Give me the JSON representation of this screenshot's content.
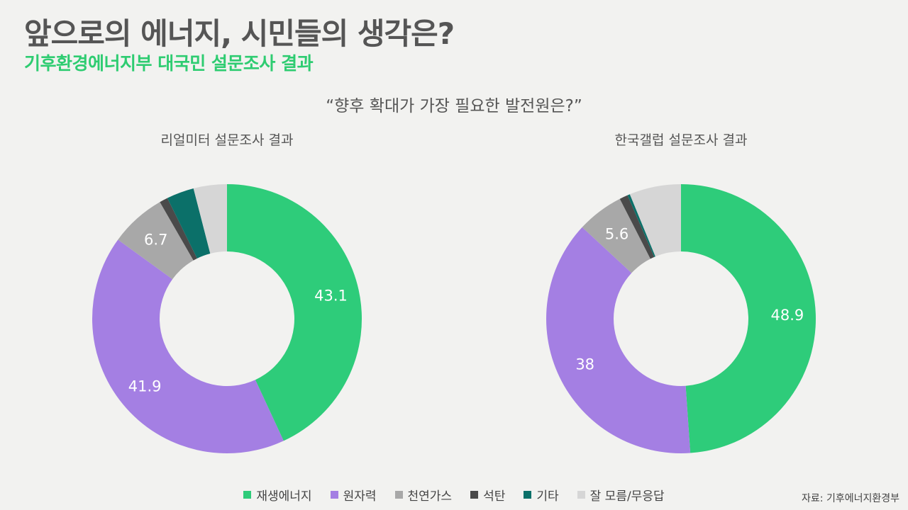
{
  "header": {
    "title": "앞으로의 에너지, 시민들의 생각은?",
    "subtitle": "기후환경에너지부 대국민 설문조사 결과",
    "question": "“향후 확대가 가장 필요한 발전원은?”"
  },
  "source": "자료: 기후에너지환경부",
  "colors": {
    "재생에너지": "#2ecc7a",
    "원자력": "#a47fe3",
    "천연가스": "#a8a8a8",
    "석탄": "#4a4a4a",
    "기타": "#0b7069",
    "잘 모름/무응답": "#d6d6d6"
  },
  "legend": [
    "재생에너지",
    "원자력",
    "천연가스",
    "석탄",
    "기타",
    "잘 모름/무응답"
  ],
  "chart_data": [
    {
      "type": "pie",
      "title": "리얼미터 설문조사 결과",
      "categories": [
        "재생에너지",
        "원자력",
        "천연가스",
        "석탄",
        "기타",
        "잘 모름/무응답"
      ],
      "values": [
        43.1,
        41.9,
        6.7,
        1.0,
        3.3,
        4.0
      ],
      "labels": [
        "43.1",
        "41.9",
        "6.7",
        "",
        "",
        ""
      ]
    },
    {
      "type": "pie",
      "title": "한국갤럽 설문조사 결과",
      "categories": [
        "재생에너지",
        "원자력",
        "천연가스",
        "석탄",
        "기타",
        "잘 모름/무응답"
      ],
      "values": [
        48.9,
        38.0,
        5.6,
        1.0,
        0.3,
        6.2
      ],
      "labels": [
        "48.9",
        "38",
        "5.6",
        "",
        "",
        ""
      ]
    }
  ]
}
